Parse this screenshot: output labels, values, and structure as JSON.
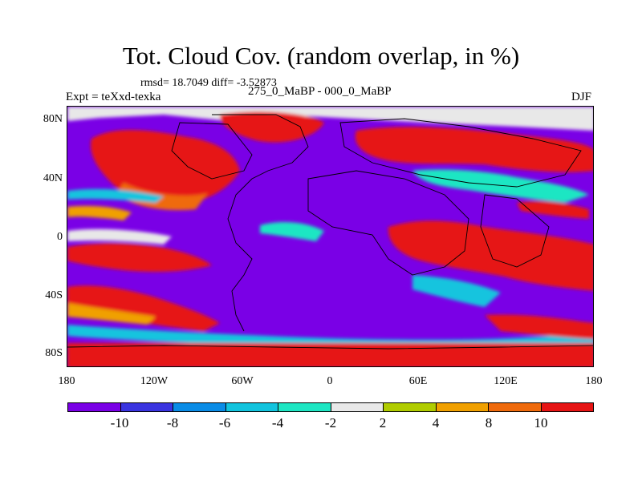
{
  "title": "Tot. Cloud Cov. (random overlap, in %)",
  "stats_line": "rmsd= 18.7049 diff= -3.52873",
  "left_label": "Expt = teXxd-texka",
  "center_label": "275_0_MaBP - 000_0_MaBP",
  "right_label": "DJF",
  "y_ticks": [
    "80N",
    "40N",
    "0",
    "40S",
    "80S"
  ],
  "x_ticks": [
    "180",
    "120W",
    "60W",
    "0",
    "60E",
    "120E",
    "180"
  ],
  "colorbar": {
    "labels": [
      "-10",
      "-8",
      "-6",
      "-4",
      "-2",
      "2",
      "4",
      "8",
      "10"
    ],
    "colors": [
      "#7a00e6",
      "#3a34e0",
      "#0a8ce6",
      "#12c4de",
      "#1ee6c3",
      "#e8e8e8",
      "#b0cc00",
      "#f0a000",
      "#ef6a0c",
      "#e61414"
    ]
  }
}
